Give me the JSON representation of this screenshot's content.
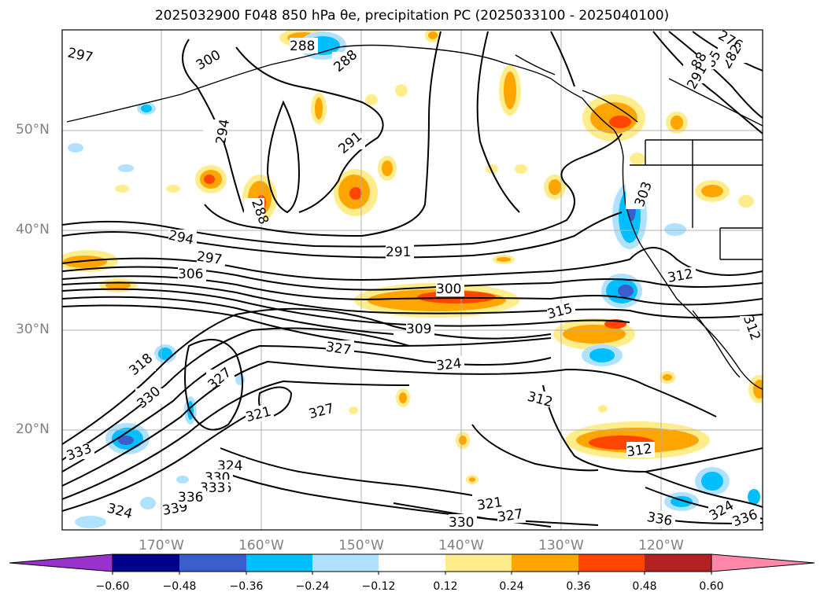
{
  "title": "2025032900 F048 850 hPa θe, precipitation PC (2025033100 - 2025040100)",
  "lat_labels": [
    "50°N",
    "40°N",
    "30°N",
    "20°N"
  ],
  "lon_labels": [
    "170°W",
    "160°W",
    "150°W",
    "140°W",
    "130°W",
    "120°W"
  ],
  "contour_labels": [
    "297",
    "300",
    "294",
    "288",
    "288",
    "291",
    "294",
    "288",
    "297",
    "306",
    "291",
    "303",
    "300",
    "315",
    "309",
    "312",
    "318",
    "327",
    "324",
    "327",
    "312",
    "330",
    "327",
    "321",
    "333",
    "312",
    "324",
    "330",
    "336",
    "324",
    "339",
    "333",
    "336",
    "321",
    "327",
    "330",
    "336",
    "324",
    "336",
    "312",
    "276",
    "282",
    "285",
    "288",
    "291"
  ],
  "colorbar": {
    "ticks": [
      "−0.60",
      "−0.48",
      "−0.36",
      "−0.24",
      "−0.12",
      "0.12",
      "0.24",
      "0.36",
      "0.48",
      "0.60"
    ],
    "colors": [
      "#9932CC",
      "#00008B",
      "#3A5FCD",
      "#00BFFF",
      "#B0E2FF",
      "#FFFFFF",
      "#FFEC8B",
      "#FFA500",
      "#FF4500",
      "#B22222",
      "#FF88AA"
    ]
  },
  "land_color": "#ffffff"
}
